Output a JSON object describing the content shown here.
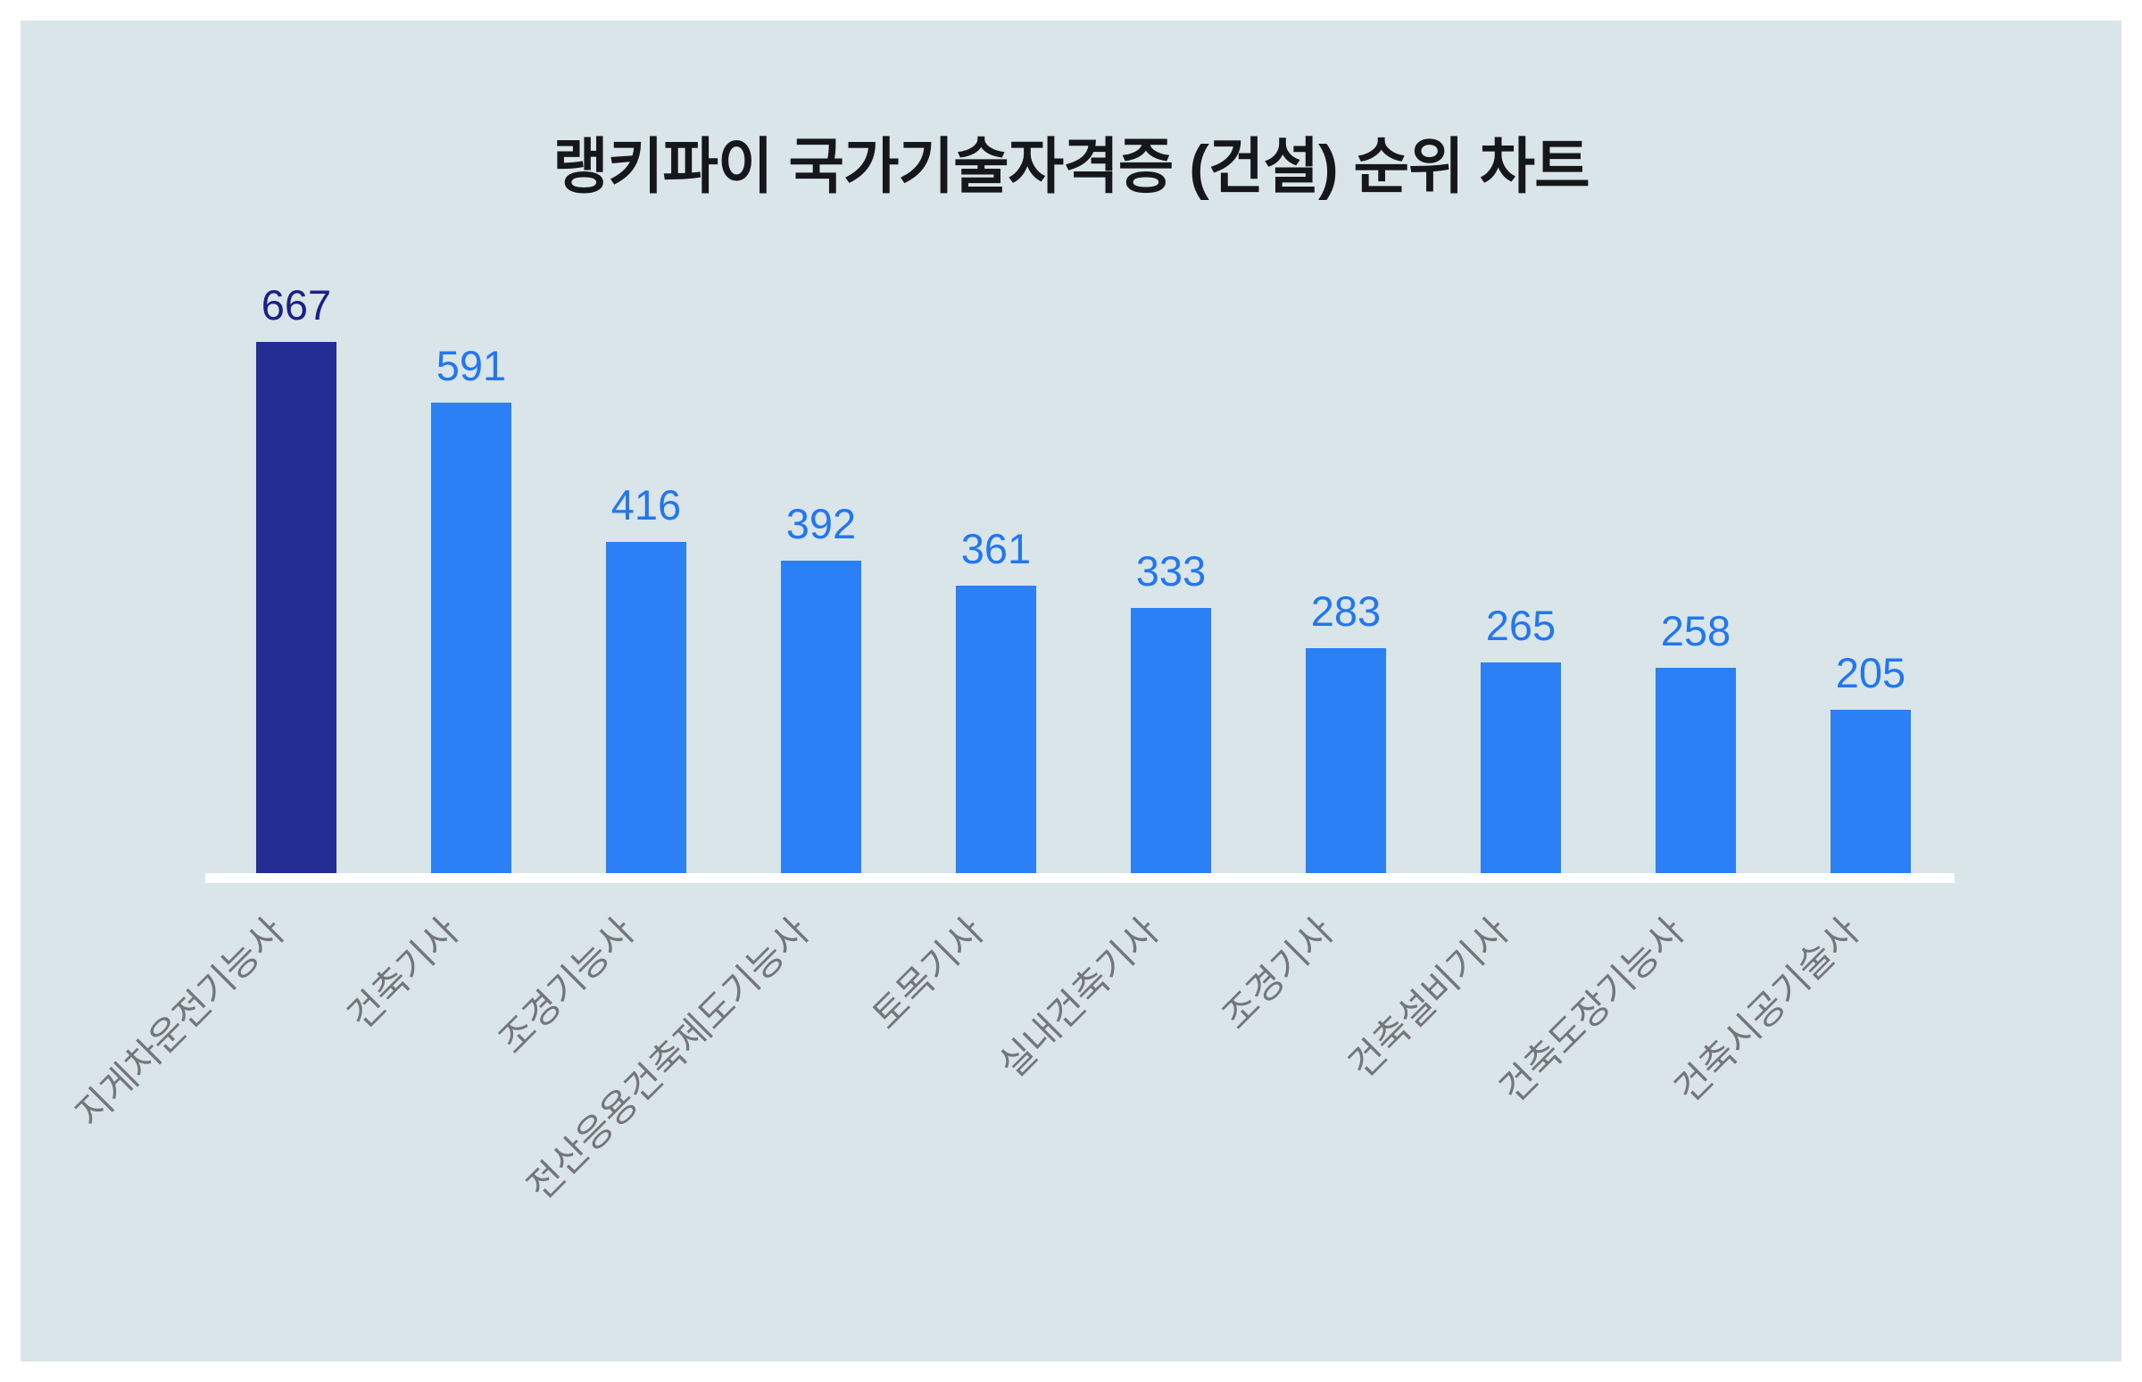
{
  "page": {
    "margin_color": "#ffffff",
    "panel_color": "#dae5e9"
  },
  "title": "랭키파이 국가기술자격증 (건설) 순위 차트",
  "chart_data": {
    "type": "bar",
    "title": "랭키파이 국가기술자격증 (건설) 순위 차트",
    "categories": [
      "지게차운전기능사",
      "건축기사",
      "조경기능사",
      "전산응용건축제도기능사",
      "토목기사",
      "실내건축기사",
      "조경기사",
      "건축설비기사",
      "건축도장기능사",
      "건축시공기술사"
    ],
    "values": [
      667,
      591,
      416,
      392,
      361,
      333,
      283,
      265,
      258,
      205
    ],
    "highlight_index": 0,
    "xlabel": "",
    "ylabel": "",
    "ylim": [
      0,
      700
    ],
    "grid": false,
    "legend": "none",
    "value_labels_position": "above-bars",
    "category_label_rotation_deg": 45,
    "colors": {
      "bar_default": "#2a80f4",
      "bar_highlight": "#232d94",
      "value_label_default": "#2277f0",
      "value_label_highlight": "#1a2086",
      "category_label": "#74777a",
      "axis_line": "#ffffff",
      "title_text": "#15171a",
      "panel_background": "#dae5e9",
      "page_margin": "#ffffff"
    }
  }
}
